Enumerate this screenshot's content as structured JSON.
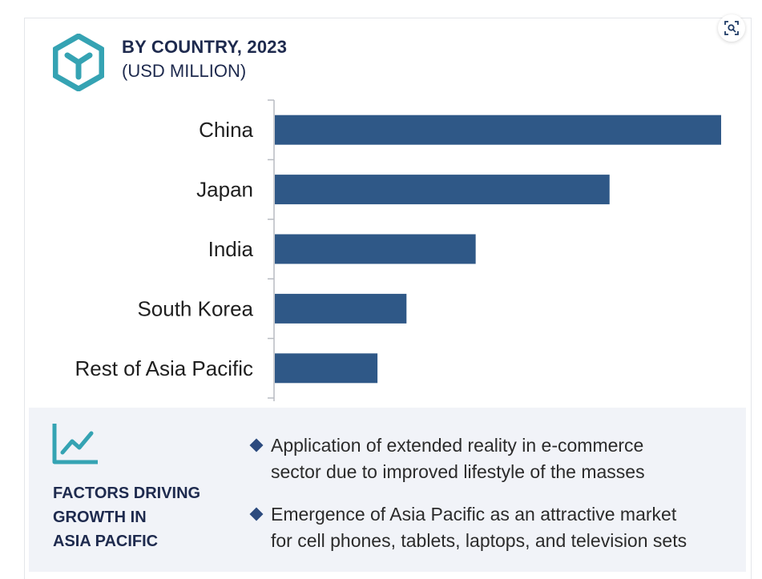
{
  "header": {
    "title": "BY COUNTRY, 2023",
    "subtitle": "(USD MILLION)"
  },
  "colors": {
    "bar": "#2f5887",
    "heading": "#1e2a4e",
    "accent_teal": "#35a3b3",
    "panel_bg": "#f1f3f8"
  },
  "icons": {
    "logo": "cube-logo-icon",
    "zoom": "zoom-icon",
    "factors": "trend-chart-icon",
    "bullet": "diamond-bullet-icon"
  },
  "chart_data": {
    "type": "bar",
    "orientation": "horizontal",
    "title": "BY COUNTRY, 2023",
    "subtitle": "(USD MILLION)",
    "categories": [
      "China",
      "Japan",
      "India",
      "South Korea",
      "Rest of Asia Pacific"
    ],
    "values": [
      100,
      75,
      45,
      29.5,
      23
    ],
    "xlim": [
      0,
      100
    ],
    "grid": false,
    "value_axis_labels": false
  },
  "factors": {
    "heading_lines": [
      "FACTORS DRIVING",
      "GROWTH IN",
      "ASIA PACIFIC"
    ],
    "bullets": [
      {
        "lines": [
          "Application of extended reality in e-commerce",
          "sector due to improved lifestyle of the masses"
        ]
      },
      {
        "lines": [
          "Emergence of Asia Pacific as an attractive market",
          "for cell phones, tablets, laptops, and television sets"
        ]
      }
    ]
  }
}
